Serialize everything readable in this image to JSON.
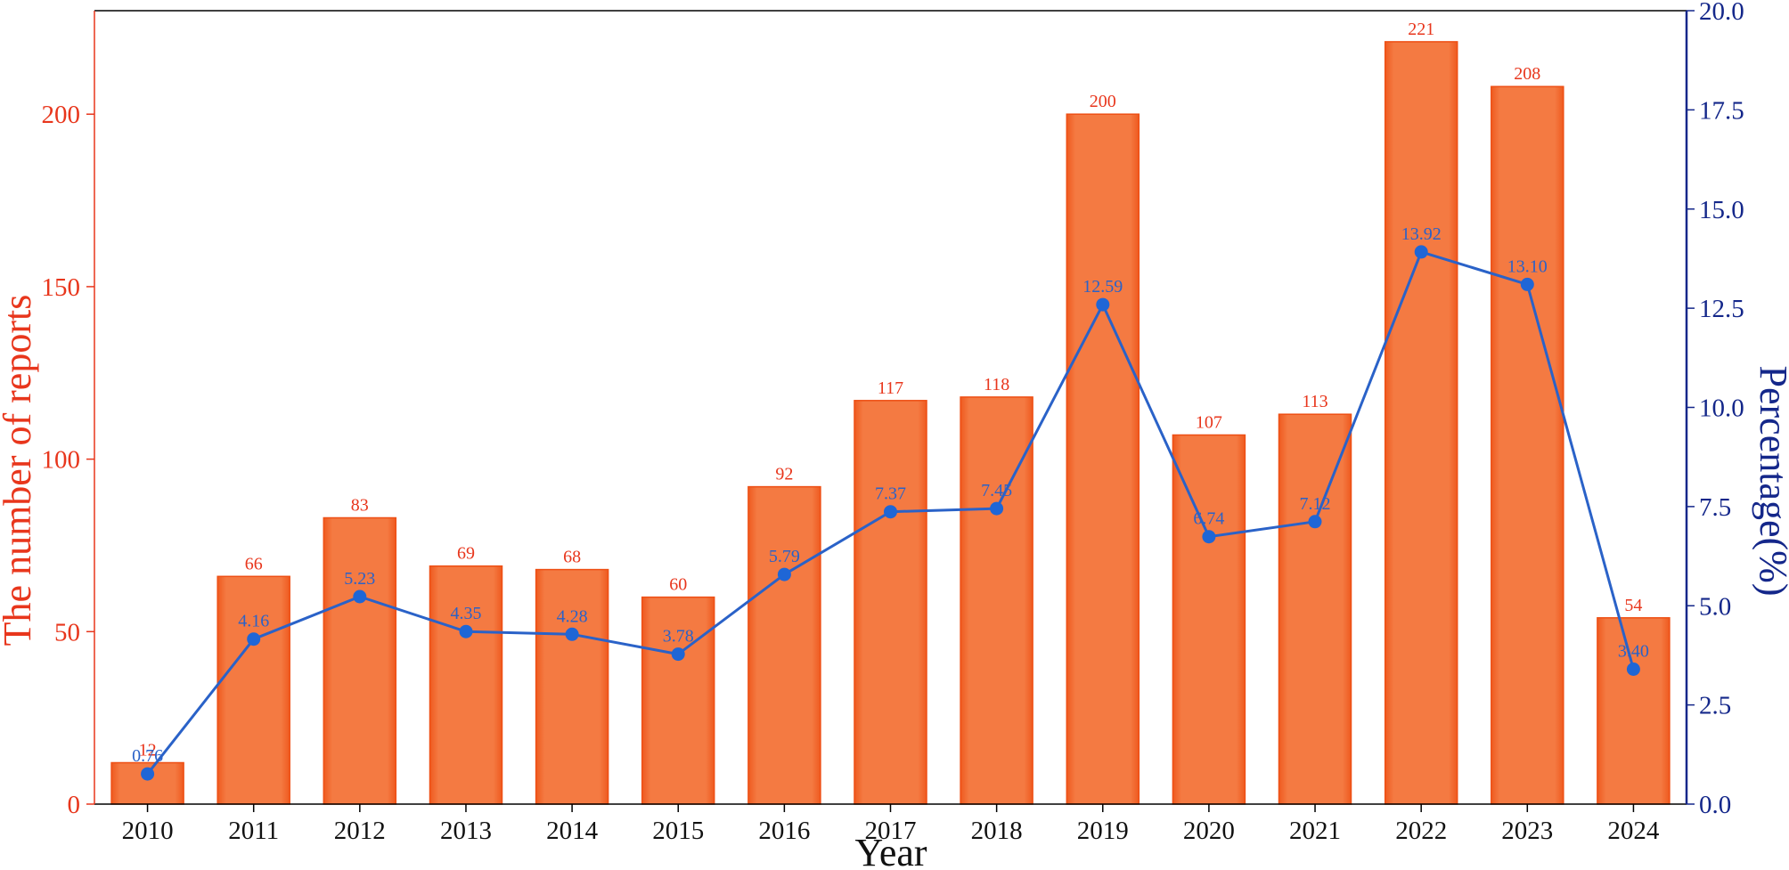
{
  "chart_data": {
    "type": "bar",
    "categories": [
      "2010",
      "2011",
      "2012",
      "2013",
      "2014",
      "2015",
      "2016",
      "2017",
      "2018",
      "2019",
      "2020",
      "2021",
      "2022",
      "2023",
      "2024"
    ],
    "series": [
      {
        "type": "bar",
        "axis": "left",
        "values": [
          12,
          66,
          83,
          69,
          68,
          60,
          92,
          117,
          118,
          200,
          107,
          113,
          221,
          208,
          54
        ],
        "labels": [
          "12",
          "66",
          "83",
          "69",
          "68",
          "60",
          "92",
          "117",
          "118",
          "200",
          "107",
          "113",
          "221",
          "208",
          "54"
        ]
      },
      {
        "type": "line",
        "axis": "right",
        "values": [
          0.76,
          4.16,
          5.23,
          4.35,
          4.28,
          3.78,
          5.79,
          7.37,
          7.45,
          12.59,
          6.74,
          7.12,
          13.92,
          13.1,
          3.4
        ],
        "labels": [
          "0.76",
          "4.16",
          "5.23",
          "4.35",
          "4.28",
          "3.78",
          "5.79",
          "7.37",
          "7.45",
          "12.59",
          "6.74",
          "7.12",
          "13.92",
          "13.10",
          "3.40"
        ]
      }
    ],
    "xlabel": "Year",
    "ylabel": "The number of reports",
    "ylabel_right": "Percentage(%)",
    "ylim": [
      0,
      230
    ],
    "ylim_right": [
      0,
      20
    ],
    "yticks": [
      "0",
      "50",
      "100",
      "150",
      "200"
    ],
    "yticks_right": [
      "0.0",
      "2.5",
      "5.0",
      "7.5",
      "10.0",
      "12.5",
      "15.0",
      "17.5",
      "20.0"
    ],
    "grid": false,
    "colors": {
      "bar": "#f47a42",
      "bar_edge": "#ee4f14",
      "bar_label": "#e8361c",
      "line": "#2a62c8",
      "point": "#1f66d6",
      "right_axis": "#14278a",
      "axis": "#000000"
    }
  }
}
